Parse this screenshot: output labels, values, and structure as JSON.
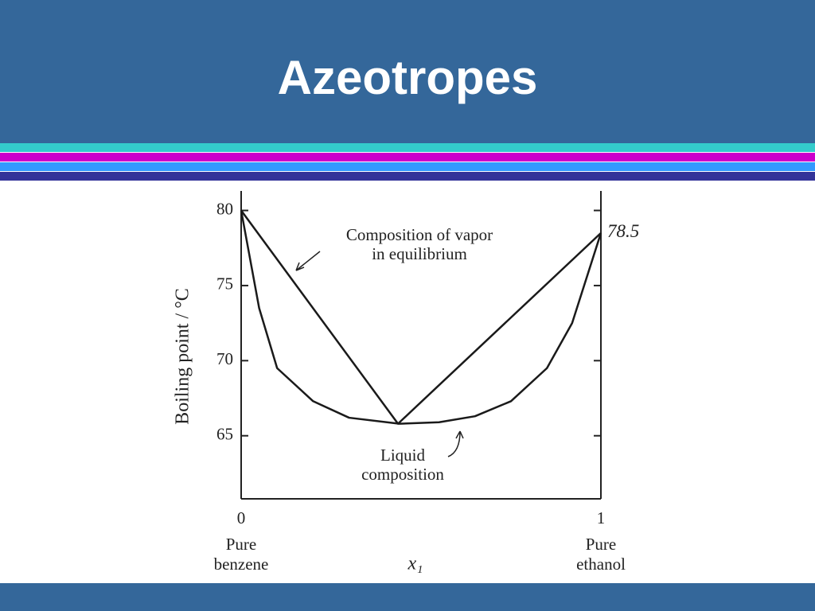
{
  "title": "Azeotropes",
  "chart_data": {
    "type": "line",
    "y_label": "Boiling point / °C",
    "x_label": "x₁",
    "xlim": [
      0,
      1
    ],
    "ylim": [
      60.8,
      81.3
    ],
    "xticks": [
      0,
      1
    ],
    "yticks": [
      65,
      70,
      75,
      80
    ],
    "x_end_labels": [
      [
        "Pure",
        "benzene"
      ],
      [
        "Pure",
        "ethanol"
      ]
    ],
    "annotations": {
      "vapor": [
        "Composition of vapor",
        "in equilibrium"
      ],
      "liquid": [
        "Liquid",
        "composition"
      ]
    },
    "series": [
      {
        "name": "Composition of vapor in equilibrium",
        "color": "#1a1a1a",
        "x": [
          0,
          0.436,
          1
        ],
        "values": [
          80,
          65.8,
          78.5
        ]
      },
      {
        "name": "Liquid composition",
        "color": "#1a1a1a",
        "x": [
          0,
          0.05,
          0.1,
          0.2,
          0.3,
          0.44,
          0.55,
          0.65,
          0.75,
          0.85,
          0.92,
          1
        ],
        "values": [
          80,
          73.5,
          69.5,
          67.3,
          66.2,
          65.8,
          65.9,
          66.3,
          67.3,
          69.5,
          72.5,
          78.5
        ]
      }
    ]
  }
}
